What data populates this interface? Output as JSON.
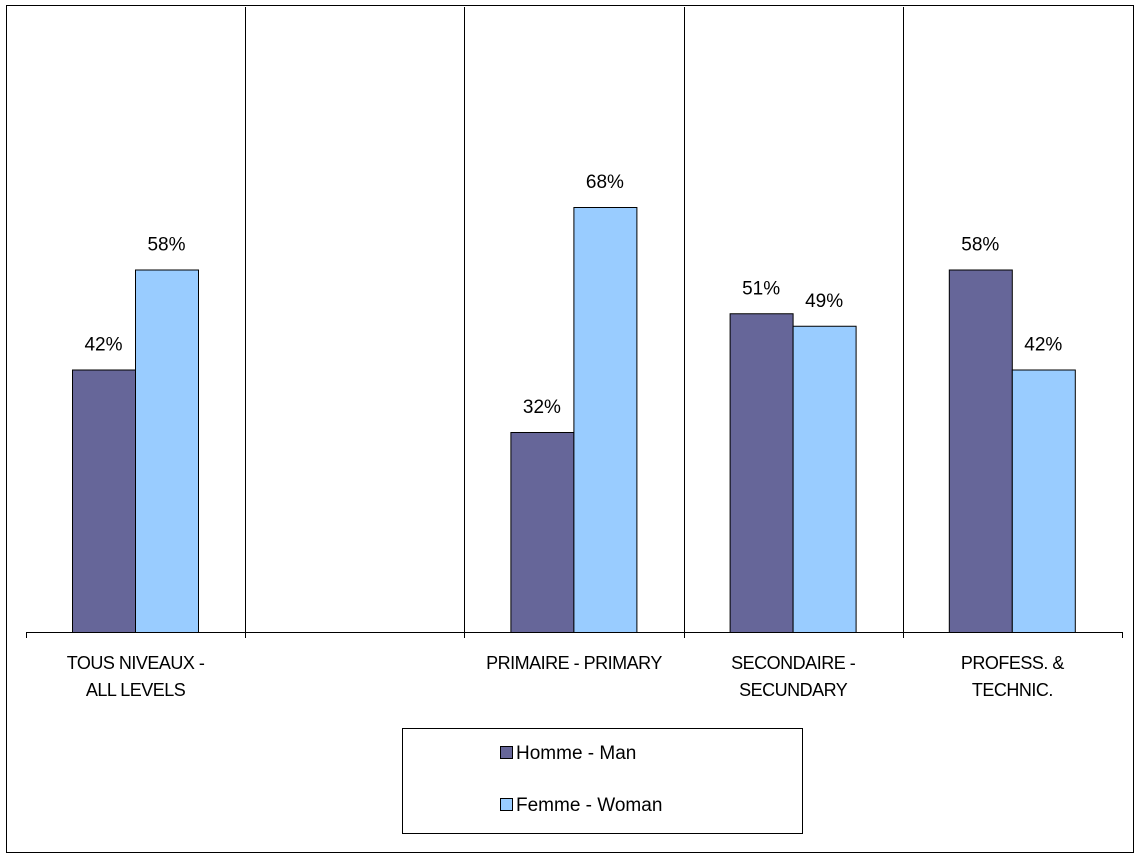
{
  "chart_data": {
    "type": "bar",
    "categories": [
      [
        "TOUS NIVEAUX -",
        "ALL LEVELS"
      ],
      [
        ""
      ],
      [
        "PRIMAIRE - PRIMARY"
      ],
      [
        "SECONDAIRE -",
        "SECUNDARY"
      ],
      [
        "PROFESS. &",
        "TECHNIC."
      ]
    ],
    "series": [
      {
        "name": "Homme - Man",
        "color": "#666699",
        "values": [
          42,
          null,
          32,
          51,
          58
        ],
        "labels": [
          "42%",
          "",
          "32%",
          "51%",
          "58%"
        ]
      },
      {
        "name": "Femme - Woman",
        "color": "#99ccff",
        "values": [
          58,
          null,
          68,
          49,
          42
        ],
        "labels": [
          "58%",
          "",
          "68%",
          "49%",
          "42%"
        ]
      }
    ],
    "ylim": [
      0,
      100
    ],
    "grid": "vertical category separators",
    "legend_position": "bottom"
  }
}
